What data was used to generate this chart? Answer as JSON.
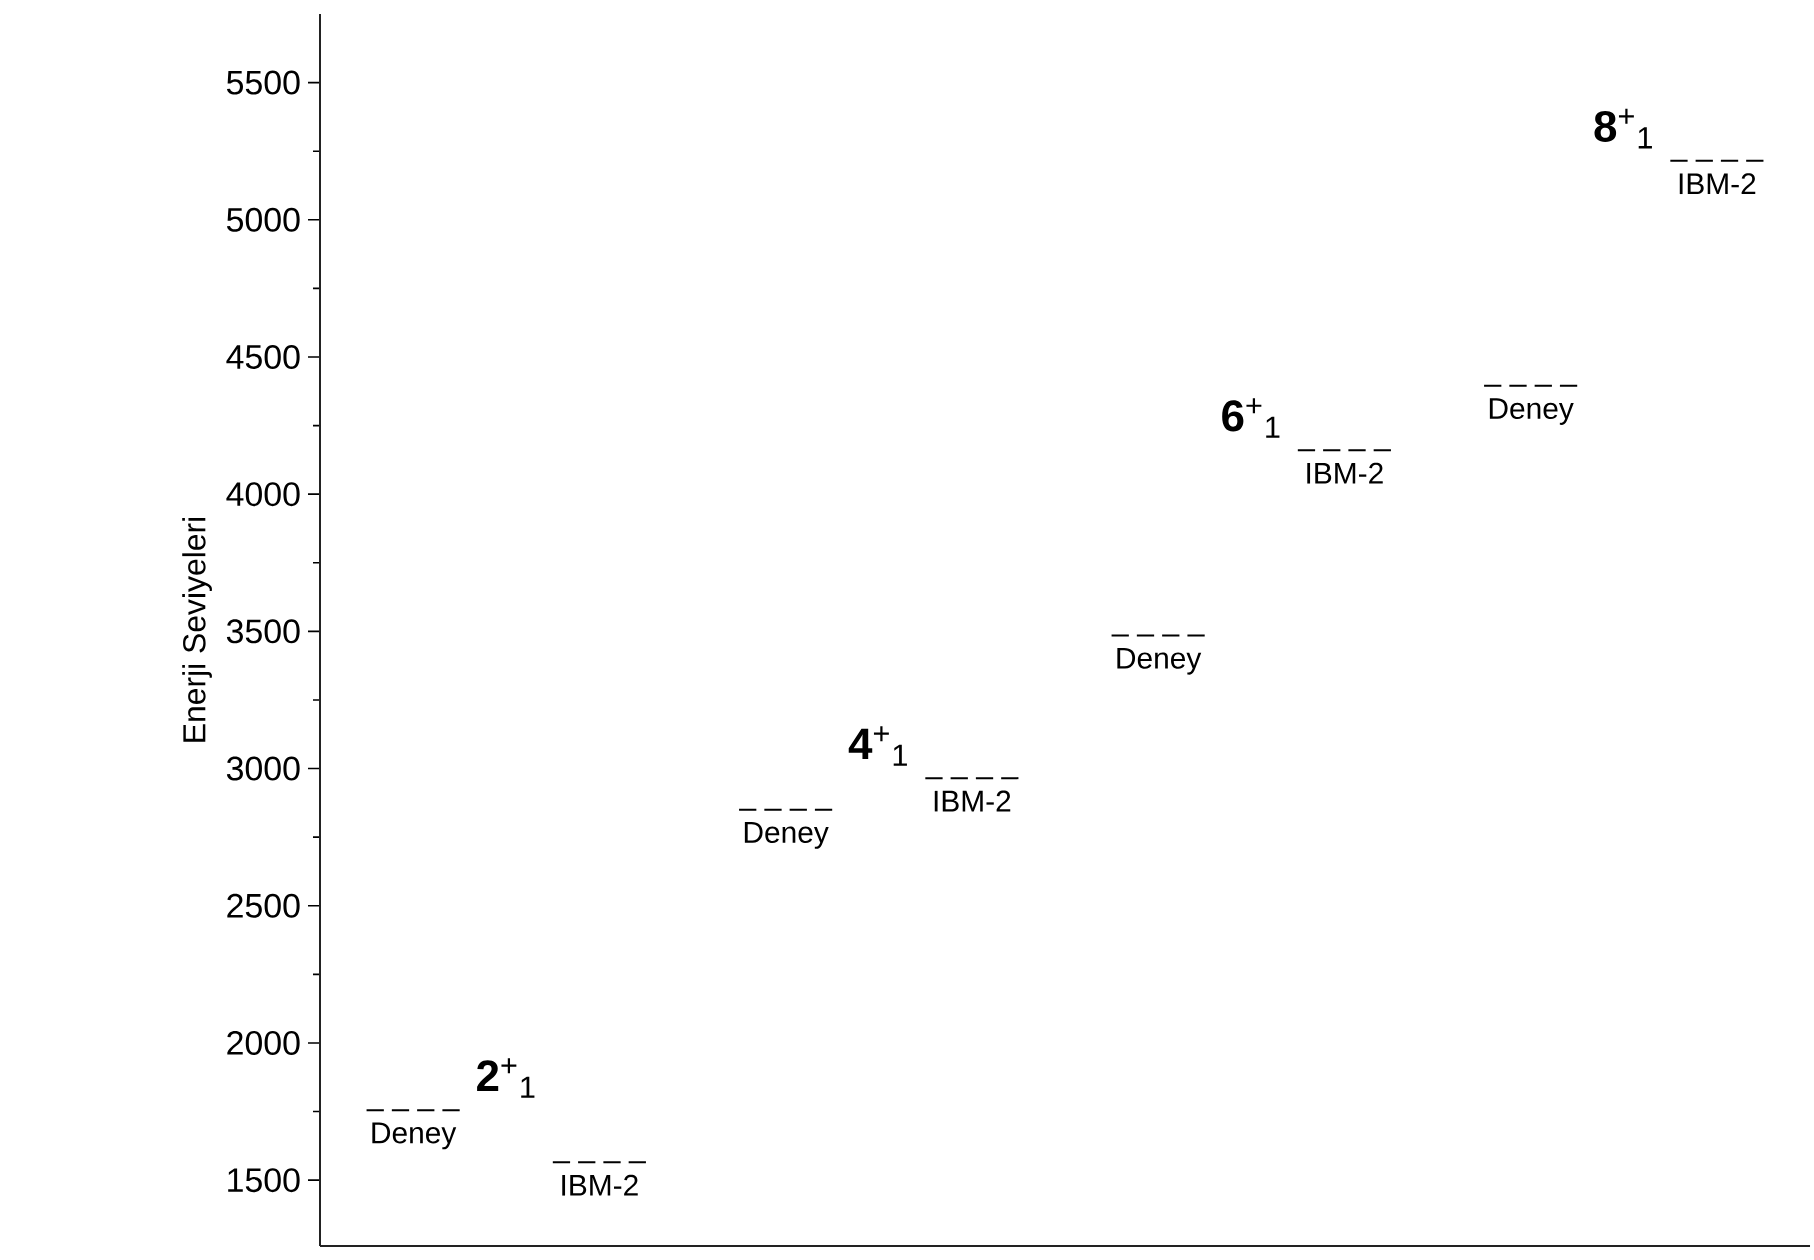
{
  "chart_data": {
    "type": "line",
    "ylabel": "Enerji Seviyeleri",
    "categories": [
      null,
      null,
      null,
      null,
      null,
      null,
      null,
      null,
      null,
      null,
      null,
      null,
      null,
      null,
      null,
      null
    ],
    "series": [
      {
        "name": "Deney",
        "color": "#000000",
        "values": [
          1755,
          1755,
          null,
          null,
          null,
          null,
          null,
          null,
          null,
          null,
          null,
          null,
          null,
          null,
          null,
          null
        ]
      },
      {
        "name": "IBM-2",
        "color": "#000000",
        "values": [
          null,
          null,
          1565,
          1565,
          null,
          null,
          null,
          null,
          null,
          null,
          null,
          null,
          null,
          null,
          null,
          null
        ]
      },
      {
        "name": "Deney",
        "color": "#000000",
        "values": [
          null,
          null,
          null,
          null,
          2850,
          2850,
          null,
          null,
          null,
          null,
          null,
          null,
          null,
          null,
          null,
          null
        ]
      },
      {
        "name": "IBM-2",
        "color": "#000000",
        "values": [
          null,
          null,
          null,
          null,
          null,
          null,
          2965,
          2965,
          null,
          null,
          null,
          null,
          null,
          null,
          null,
          null
        ]
      },
      {
        "name": "Deney",
        "color": "#000000",
        "values": [
          null,
          null,
          null,
          null,
          null,
          null,
          null,
          null,
          3485,
          3485,
          null,
          null,
          null,
          null,
          null,
          null
        ]
      },
      {
        "name": "IBM-2",
        "color": "#000000",
        "values": [
          null,
          null,
          null,
          null,
          null,
          null,
          null,
          null,
          null,
          null,
          4160,
          4160,
          null,
          null,
          null,
          null
        ]
      },
      {
        "name": "Deney",
        "color": "#000000",
        "values": [
          null,
          null,
          null,
          null,
          null,
          null,
          null,
          null,
          null,
          null,
          null,
          null,
          4395,
          4395,
          null,
          null
        ]
      },
      {
        "name": "IBM-2",
        "color": "#000000",
        "values": [
          null,
          null,
          null,
          null,
          null,
          null,
          null,
          null,
          null,
          null,
          null,
          null,
          null,
          null,
          5215,
          5215
        ]
      }
    ],
    "annotations": [
      "**2**$^{+}$$_{1}$",
      "**4**$^{+}$$_{1}$",
      "**6**$^{+}$$_{1}$",
      "**8**$^{+}$$_{1}$"
    ],
    "ylim": [
      1260,
      5750
    ],
    "yticks": [
      1500,
      {
        "value": 1750,
        "label": null
      },
      2000,
      {
        "value": 2250,
        "label": null
      },
      2500,
      {
        "value": 2750,
        "label": null
      },
      3000,
      {
        "value": 3250,
        "label": null
      },
      3500,
      {
        "value": 3750,
        "label": null
      },
      4000,
      {
        "value": 4250,
        "label": null
      },
      4500,
      {
        "value": 4750,
        "label": null
      },
      5000,
      {
        "value": 5250,
        "label": null
      },
      5500
    ],
    "tick_labels": "y",
    "line_style": "dashed",
    "marker": "none"
  }
}
